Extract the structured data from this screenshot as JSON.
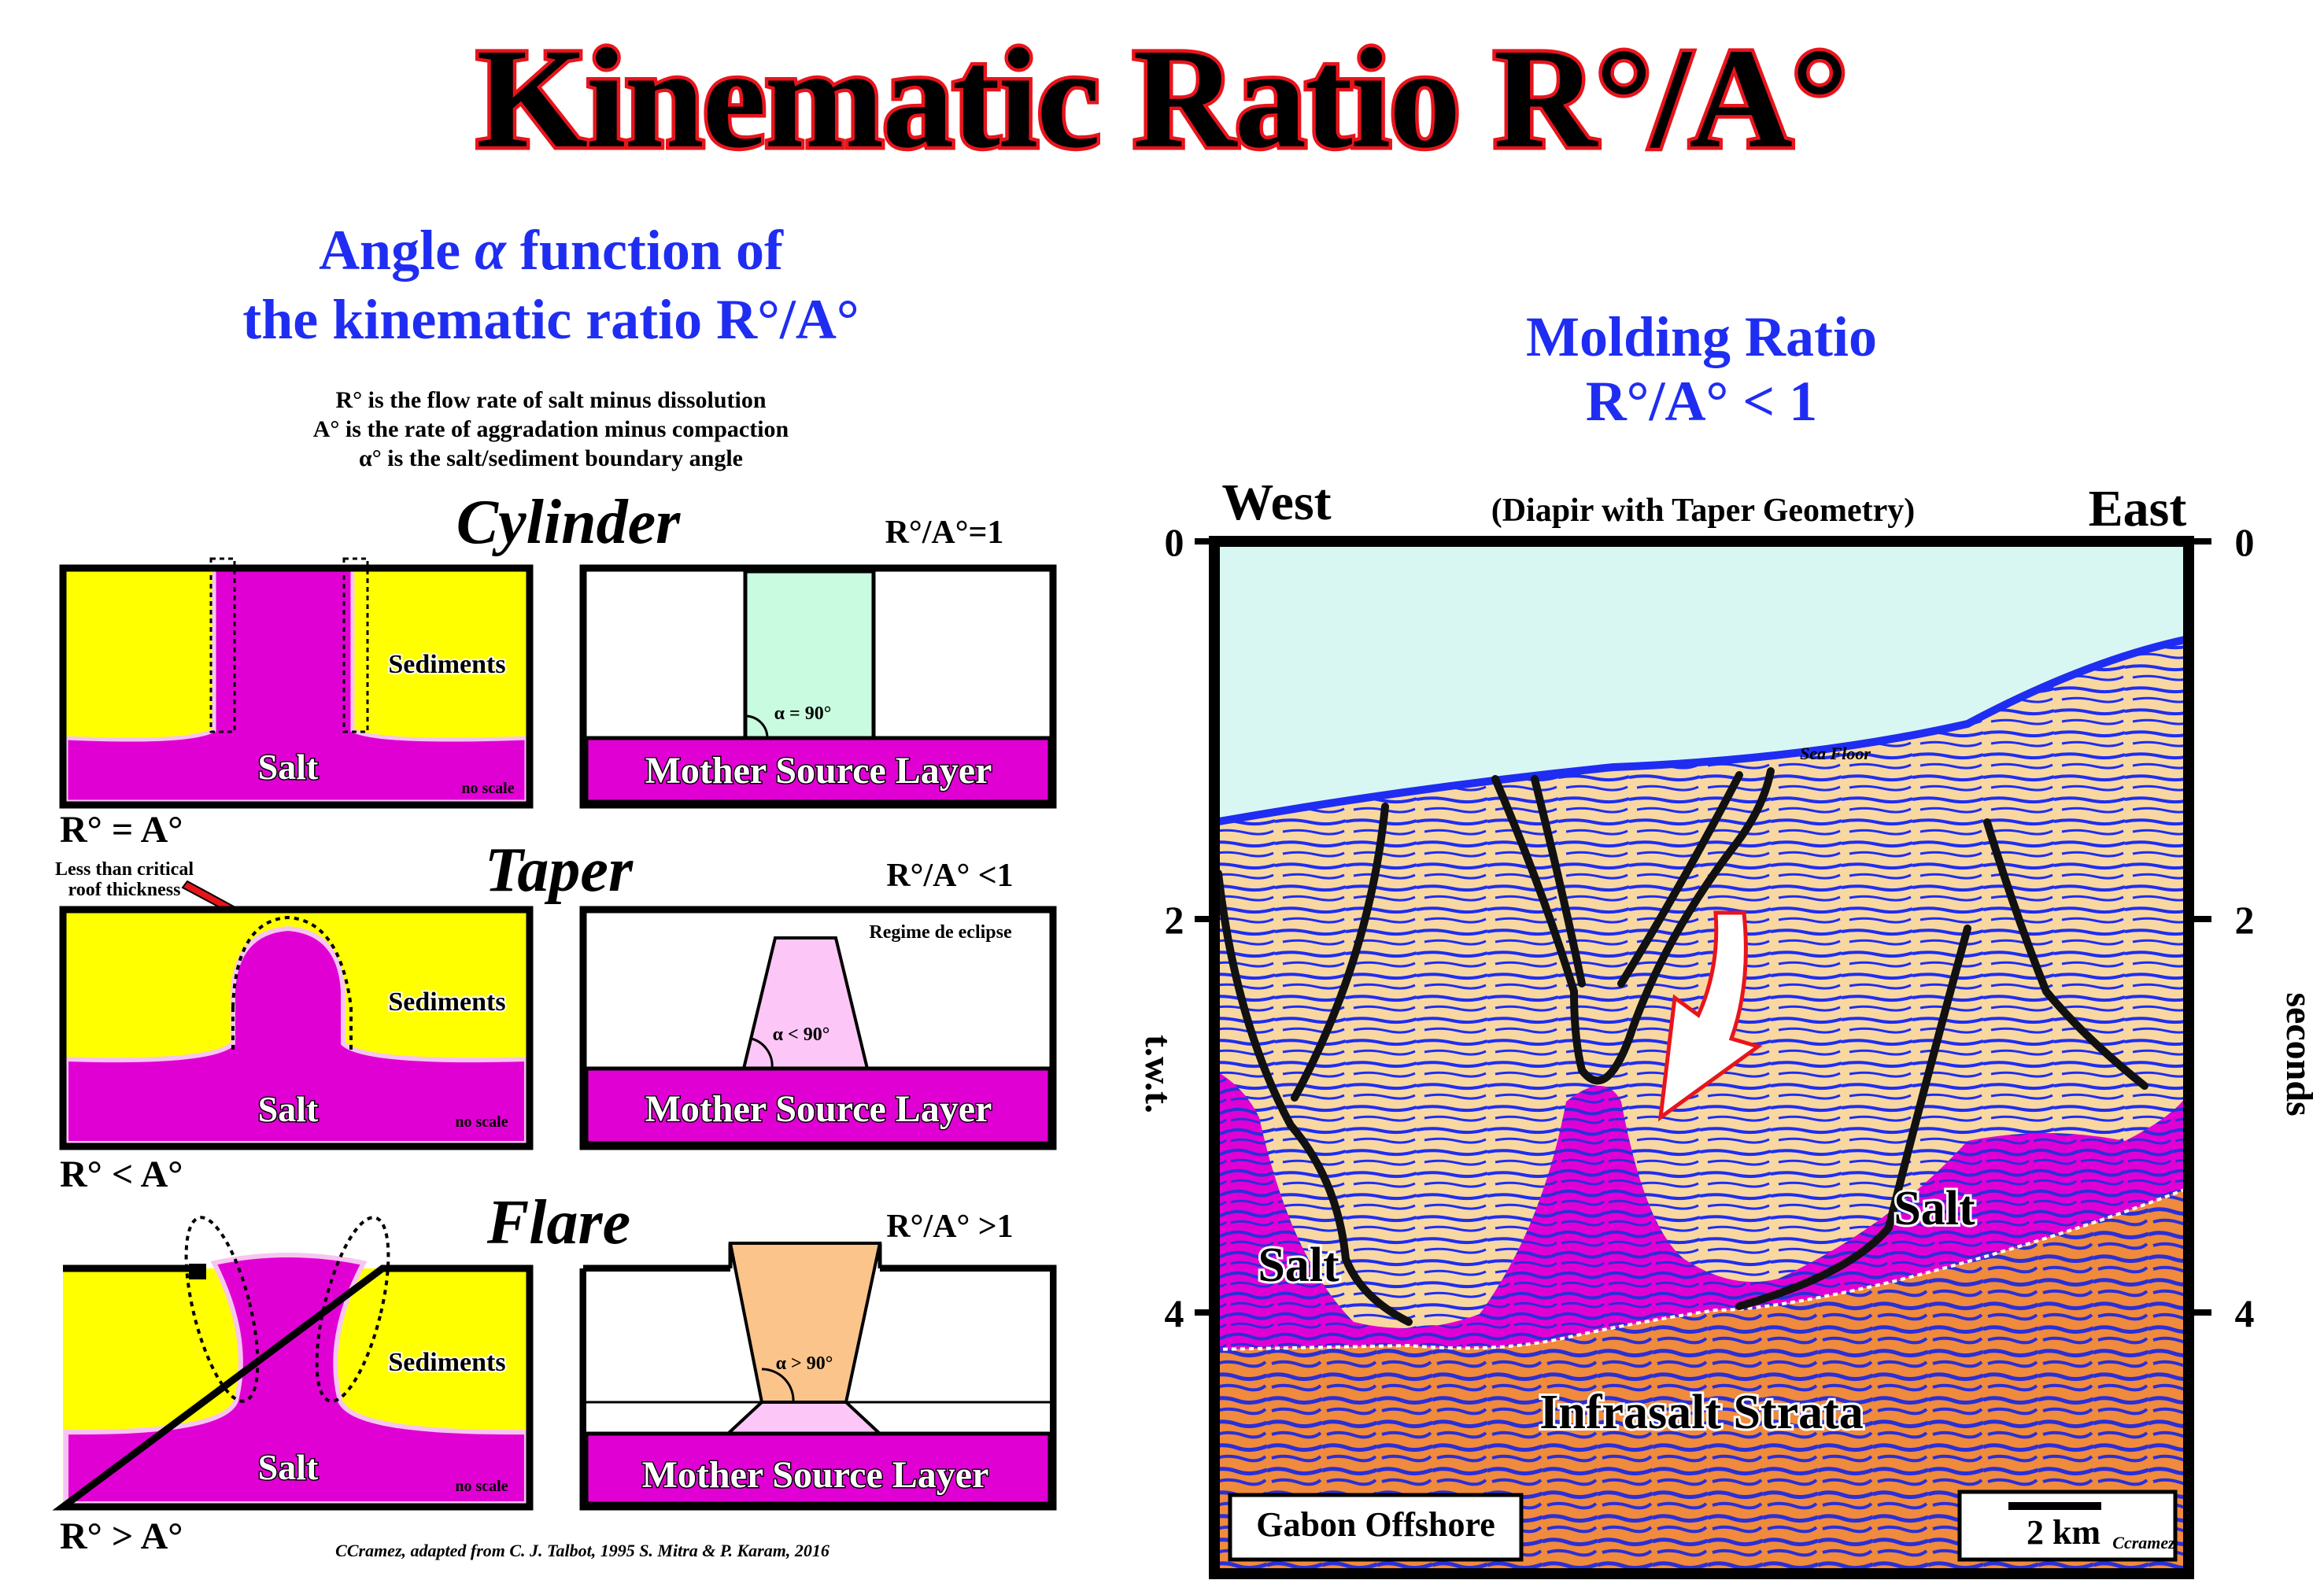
{
  "title": "Kinematic Ratio R°/A°",
  "left": {
    "heading_line1_pre": "Angle ",
    "heading_alpha": "α",
    "heading_line1_post": " function of",
    "heading_line2": "the kinematic ratio R°/A°",
    "definitions": [
      "R° is the flow rate of salt minus dissolution",
      "A° is the rate of aggradation minus compaction",
      "α° is the salt/sediment boundary angle"
    ],
    "rows": [
      {
        "name": "Cylinder",
        "ratio": "R°/A°=1",
        "sediments": "Sediments",
        "salt": "Salt",
        "no_scale": "no scale",
        "angle_label": "α = 90°",
        "source_layer": "Mother Source Layer",
        "relation": "R° = A°"
      },
      {
        "name": "Taper",
        "ratio": "R°/A° <1",
        "sediments": "Sediments",
        "salt": "Salt",
        "no_scale": "no scale",
        "angle_label": "α < 90°",
        "regime": "Regime de eclipse",
        "source_layer": "Mother Source Layer",
        "relation": "R° < A°",
        "note_line1": "Less than critical",
        "note_line2": "roof thickness"
      },
      {
        "name": "Flare",
        "ratio": "R°/A° >1",
        "sediments": "Sediments",
        "salt": "Salt",
        "no_scale": "no scale",
        "angle_label": "α > 90°",
        "source_layer": "Mother Source Layer",
        "relation": "R° > A°"
      }
    ],
    "credit": "CCramez, adapted from C. J. Talbot, 1995 S. Mitra & P. Karam, 2016"
  },
  "right": {
    "heading_line1": "Molding Ratio",
    "heading_line2": "R°/A° < 1",
    "west": "West",
    "east": "East",
    "subtitle": "(Diapir with Taper Geometry)",
    "y_ticks": [
      "0",
      "2",
      "4"
    ],
    "y_label_left": "t.w.t.",
    "y_label_right": "seconds",
    "sea_floor": "Sea Floor",
    "salt_left": "Salt",
    "salt_right": "Salt",
    "infrasalt": "Infrasalt Strata",
    "location": "Gabon Offshore",
    "scale": "2 km",
    "scale_credit": "Ccramez"
  },
  "colors": {
    "sediment_yellow": "#ffff00",
    "salt_magenta": "#e100d4",
    "water": "#d9f7f2",
    "section_sediment": "#f8d8a0",
    "section_blue": "#1f2df2",
    "infrasalt_orange": "#f08a3c",
    "title_outline": "#e8141c",
    "cylinder_green": "#c8fbe0",
    "taper_pink": "#fcc6f6",
    "flare_orange": "#fbc48a"
  }
}
